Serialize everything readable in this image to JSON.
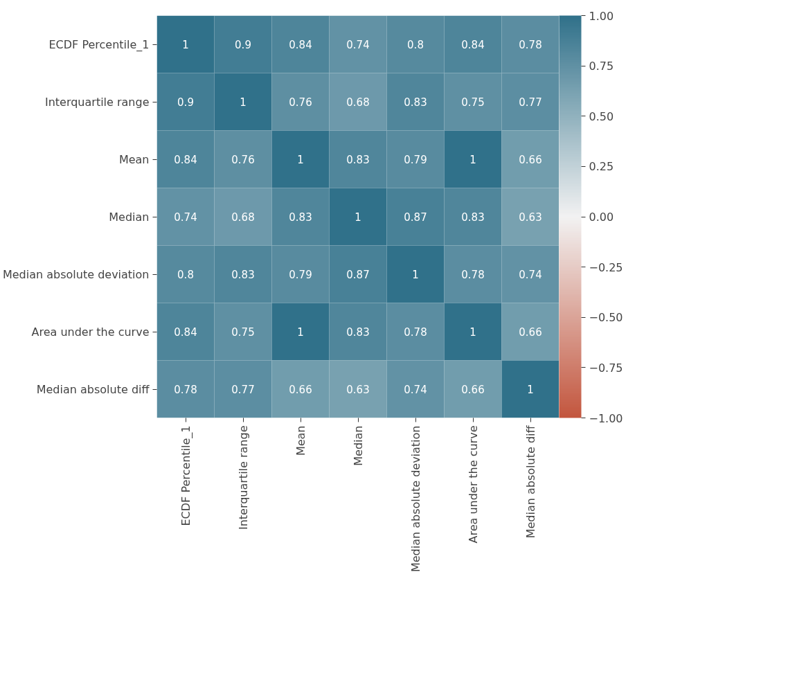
{
  "chart_data": {
    "type": "heatmap",
    "categories": [
      "ECDF Percentile_1",
      "Interquartile range",
      "Mean",
      "Median",
      "Median absolute deviation",
      "Area under the curve",
      "Median absolute diff"
    ],
    "y_categories": [
      "ECDF Percentile_1",
      "Interquartile range",
      "Mean",
      "Median",
      "Median absolute deviation",
      "Area under the curve",
      "Median absolute diff"
    ],
    "cells": [
      [
        1,
        0.9,
        0.84,
        0.74,
        0.8,
        0.84,
        0.78
      ],
      [
        0.9,
        1,
        0.76,
        0.68,
        0.83,
        0.75,
        0.77
      ],
      [
        0.84,
        0.76,
        1,
        0.83,
        0.79,
        1,
        0.66
      ],
      [
        0.74,
        0.68,
        0.83,
        1,
        0.87,
        0.83,
        0.63
      ],
      [
        0.8,
        0.83,
        0.79,
        0.87,
        1,
        0.78,
        0.74
      ],
      [
        0.84,
        0.75,
        1,
        0.83,
        0.78,
        1,
        0.66
      ],
      [
        0.78,
        0.77,
        0.66,
        0.63,
        0.74,
        0.66,
        1
      ]
    ],
    "clim": [
      -1,
      1
    ],
    "cticks": [
      {
        "value": -1,
        "label": "−1.00"
      },
      {
        "value": -0.75,
        "label": "−0.75"
      },
      {
        "value": -0.5,
        "label": "−0.50"
      },
      {
        "value": -0.25,
        "label": "−0.25"
      },
      {
        "value": 0,
        "label": "0.00"
      },
      {
        "value": 0.25,
        "label": "0.25"
      },
      {
        "value": 0.5,
        "label": "0.50"
      },
      {
        "value": 0.75,
        "label": "0.75"
      },
      {
        "value": 1,
        "label": "1.00"
      }
    ],
    "data_labels": true
  }
}
